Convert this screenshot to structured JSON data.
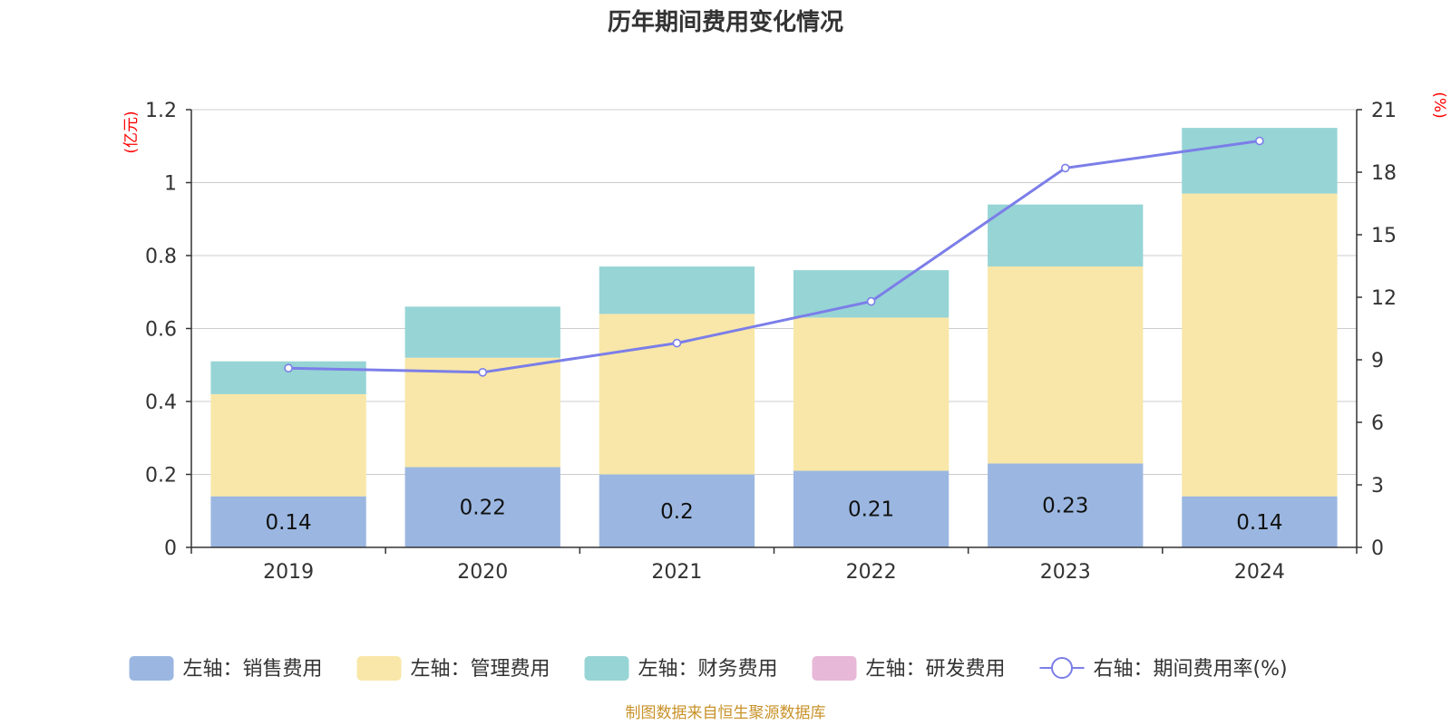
{
  "chart_data": {
    "type": "bar",
    "title": "历年期间费用变化情况",
    "categories": [
      "2019",
      "2020",
      "2021",
      "2022",
      "2023",
      "2024"
    ],
    "series": [
      {
        "name": "左轴：销售费用",
        "type": "bar",
        "axis": "left",
        "color": "#9bb7e1",
        "values": [
          0.14,
          0.22,
          0.2,
          0.21,
          0.23,
          0.14
        ],
        "labels": [
          "0.14",
          "0.22",
          "0.2",
          "0.21",
          "0.23",
          "0.14"
        ]
      },
      {
        "name": "左轴：管理费用",
        "type": "bar",
        "axis": "left",
        "color": "#f8e7a8",
        "values": [
          0.28,
          0.3,
          0.44,
          0.42,
          0.54,
          0.83
        ]
      },
      {
        "name": "左轴：财务费用",
        "type": "bar",
        "axis": "left",
        "color": "#97d4d5",
        "values": [
          0.09,
          0.14,
          0.13,
          0.13,
          0.17,
          0.18
        ]
      },
      {
        "name": "左轴：研发费用",
        "type": "bar",
        "axis": "left",
        "color": "#e8b8d8",
        "values": [
          0,
          0,
          0,
          0,
          0,
          0
        ]
      },
      {
        "name": "右轴：期间费用率(%)",
        "type": "line",
        "axis": "right",
        "color": "#7b7ee8",
        "values": [
          8.6,
          8.4,
          9.8,
          11.8,
          18.2,
          19.5
        ]
      }
    ],
    "y_left": {
      "unit": "(亿元)",
      "ylim": [
        0,
        1.2
      ],
      "ticks": [
        "0",
        "0.2",
        "0.4",
        "0.6",
        "0.8",
        "1",
        "1.2"
      ]
    },
    "y_right": {
      "unit": "(%)",
      "ylim": [
        0,
        21
      ],
      "ticks": [
        "0",
        "3",
        "6",
        "9",
        "12",
        "15",
        "18",
        "21"
      ]
    },
    "grid": true,
    "legend_position": "bottom"
  },
  "footer": {
    "source": "制图数据来自恒生聚源数据库"
  }
}
